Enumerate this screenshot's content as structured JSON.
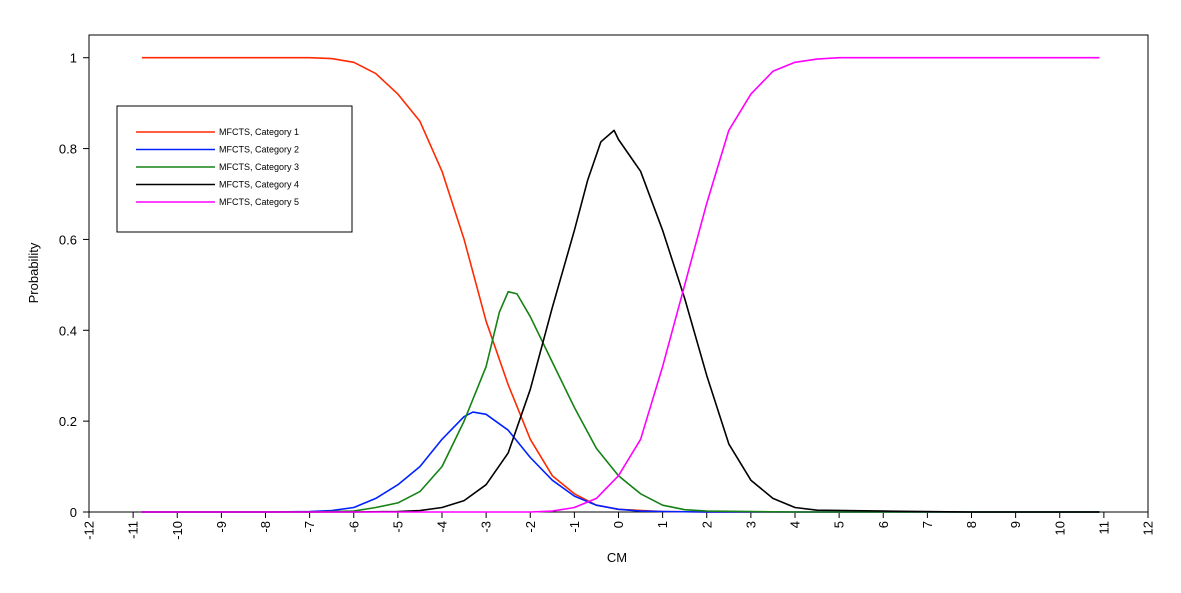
{
  "chart_data": {
    "type": "line",
    "xlabel": "CM",
    "ylabel": "Probability",
    "xlim": [
      -12,
      12
    ],
    "ylim": [
      0,
      1.05
    ],
    "xticks": [
      -12,
      -11,
      -10,
      -9,
      -8,
      -7,
      -6,
      -5,
      -4,
      -3,
      -2,
      -1,
      0,
      1,
      2,
      3,
      4,
      5,
      6,
      7,
      8,
      9,
      10,
      11,
      12
    ],
    "yticks": [
      0,
      0.2,
      0.4,
      0.6,
      0.8,
      1
    ],
    "legend_position": "top-left",
    "grid": false,
    "series": [
      {
        "name": "MFCTS, Category 1",
        "color": "#ff2a00",
        "x": [
          -10.8,
          -9,
          -8,
          -7,
          -6.5,
          -6,
          -5.5,
          -5,
          -4.5,
          -4,
          -3.5,
          -3,
          -2.5,
          -2,
          -1.5,
          -1,
          -0.5,
          0,
          1,
          2,
          4,
          6,
          8,
          10,
          10.9
        ],
        "y": [
          1,
          1,
          1,
          1,
          0.998,
          0.99,
          0.965,
          0.92,
          0.86,
          0.75,
          0.6,
          0.42,
          0.28,
          0.16,
          0.08,
          0.04,
          0.015,
          0.006,
          0.001,
          0,
          0,
          0,
          0,
          0,
          0
        ]
      },
      {
        "name": "MFCTS, Category 2",
        "color": "#0022ff",
        "x": [
          -10.8,
          -8,
          -7,
          -6.5,
          -6,
          -5.5,
          -5,
          -4.5,
          -4,
          -3.5,
          -3.3,
          -3,
          -2.5,
          -2,
          -1.5,
          -1,
          -0.5,
          0,
          0.5,
          1,
          2,
          4,
          6,
          8,
          10,
          10.9
        ],
        "y": [
          0,
          0,
          0.001,
          0.003,
          0.01,
          0.03,
          0.06,
          0.1,
          0.16,
          0.21,
          0.22,
          0.215,
          0.18,
          0.12,
          0.07,
          0.035,
          0.015,
          0.006,
          0.002,
          0.001,
          0,
          0,
          0,
          0,
          0,
          0
        ]
      },
      {
        "name": "MFCTS, Category 3",
        "color": "#148214",
        "x": [
          -10.8,
          -7,
          -6,
          -5.5,
          -5,
          -4.5,
          -4,
          -3.5,
          -3,
          -2.7,
          -2.5,
          -2.3,
          -2,
          -1.5,
          -1,
          -0.5,
          0,
          0.5,
          1,
          1.5,
          2,
          4,
          6,
          8,
          10,
          10.9
        ],
        "y": [
          0,
          0,
          0.002,
          0.01,
          0.02,
          0.045,
          0.1,
          0.2,
          0.32,
          0.44,
          0.485,
          0.48,
          0.43,
          0.33,
          0.23,
          0.14,
          0.08,
          0.04,
          0.015,
          0.005,
          0.002,
          0,
          0,
          0,
          0,
          0
        ]
      },
      {
        "name": "MFCTS, Category 4",
        "color": "#000000",
        "x": [
          -10.8,
          -6,
          -5,
          -4.5,
          -4,
          -3.5,
          -3,
          -2.5,
          -2,
          -1.5,
          -1,
          -0.7,
          -0.4,
          -0.1,
          0,
          0.5,
          1,
          1.5,
          2,
          2.5,
          3,
          3.5,
          4,
          4.5,
          6,
          8,
          10,
          10.9
        ],
        "y": [
          0,
          0,
          0.001,
          0.003,
          0.01,
          0.025,
          0.06,
          0.13,
          0.27,
          0.45,
          0.62,
          0.73,
          0.815,
          0.84,
          0.82,
          0.75,
          0.62,
          0.47,
          0.3,
          0.15,
          0.07,
          0.03,
          0.01,
          0.004,
          0.002,
          0,
          0,
          0
        ]
      },
      {
        "name": "MFCTS, Category 5",
        "color": "#ff00ff",
        "x": [
          -10.8,
          -4,
          -3,
          -2,
          -1.5,
          -1,
          -0.5,
          0,
          0.5,
          1,
          1.5,
          2,
          2.5,
          3,
          3.5,
          4,
          4.5,
          5,
          6,
          8,
          10,
          10.9
        ],
        "y": [
          0,
          0,
          0,
          0,
          0.002,
          0.01,
          0.03,
          0.08,
          0.16,
          0.32,
          0.5,
          0.68,
          0.84,
          0.92,
          0.97,
          0.99,
          0.997,
          1,
          1,
          1,
          1,
          1
        ]
      }
    ]
  }
}
